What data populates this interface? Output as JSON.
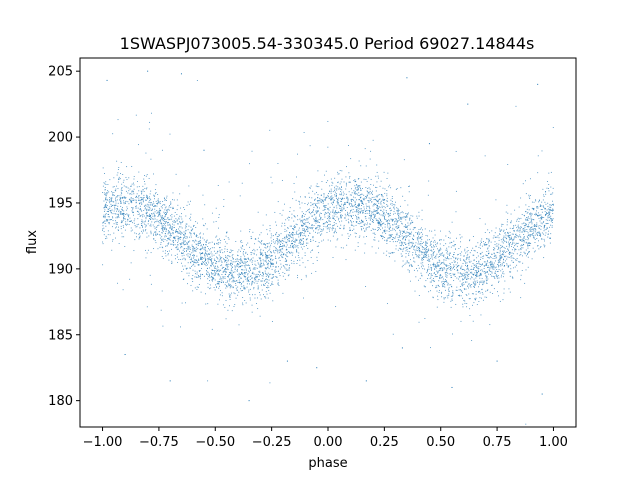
{
  "chart_data": {
    "type": "scatter",
    "title": "1SWASPJ073005.54-330345.0 Period 69027.14844s",
    "xlabel": "phase",
    "ylabel": "flux",
    "xlim": [
      -1.1,
      1.1
    ],
    "ylim": [
      178,
      206
    ],
    "xticks": [
      -1.0,
      -0.75,
      -0.5,
      -0.25,
      0.0,
      0.25,
      0.5,
      0.75,
      1.0
    ],
    "xtick_labels": [
      "−1.00",
      "−0.75",
      "−0.50",
      "−0.25",
      "0.00",
      "0.25",
      "0.50",
      "0.75",
      "1.00"
    ],
    "yticks": [
      180,
      185,
      190,
      195,
      200,
      205
    ],
    "ytick_labels": [
      "180",
      "185",
      "190",
      "195",
      "200",
      "205"
    ],
    "grid": false,
    "marker_color": "#1f77b4",
    "series": [
      {
        "model": "periodic light curve folded over two cycles",
        "phase_range": [
          -1.0,
          1.0
        ],
        "mean_flux": 192.3,
        "amplitude": 2.6,
        "peak_phases": [
          -0.9,
          0.1
        ],
        "trough_phases": [
          -0.4,
          0.6
        ],
        "scatter_sigma": 1.2,
        "n_points": 5500
      }
    ],
    "outliers": [
      {
        "x": -0.98,
        "y": 204.3
      },
      {
        "x": -0.8,
        "y": 205.0
      },
      {
        "x": -0.65,
        "y": 204.8
      },
      {
        "x": -0.18,
        "y": 183.0
      },
      {
        "x": -0.05,
        "y": 182.5
      },
      {
        "x": 0.35,
        "y": 204.5
      },
      {
        "x": 0.62,
        "y": 202.5
      },
      {
        "x": 0.93,
        "y": 204.0
      },
      {
        "x": -0.7,
        "y": 181.5
      },
      {
        "x": 0.95,
        "y": 180.5
      },
      {
        "x": 0.55,
        "y": 181.0
      },
      {
        "x": -0.35,
        "y": 180.0
      },
      {
        "x": 0.17,
        "y": 181.5
      },
      {
        "x": -0.9,
        "y": 183.5
      },
      {
        "x": 0.75,
        "y": 183.0
      },
      {
        "x": 0.33,
        "y": 184.0
      },
      {
        "x": -0.55,
        "y": 199.0
      },
      {
        "x": 0.45,
        "y": 199.5
      }
    ]
  }
}
